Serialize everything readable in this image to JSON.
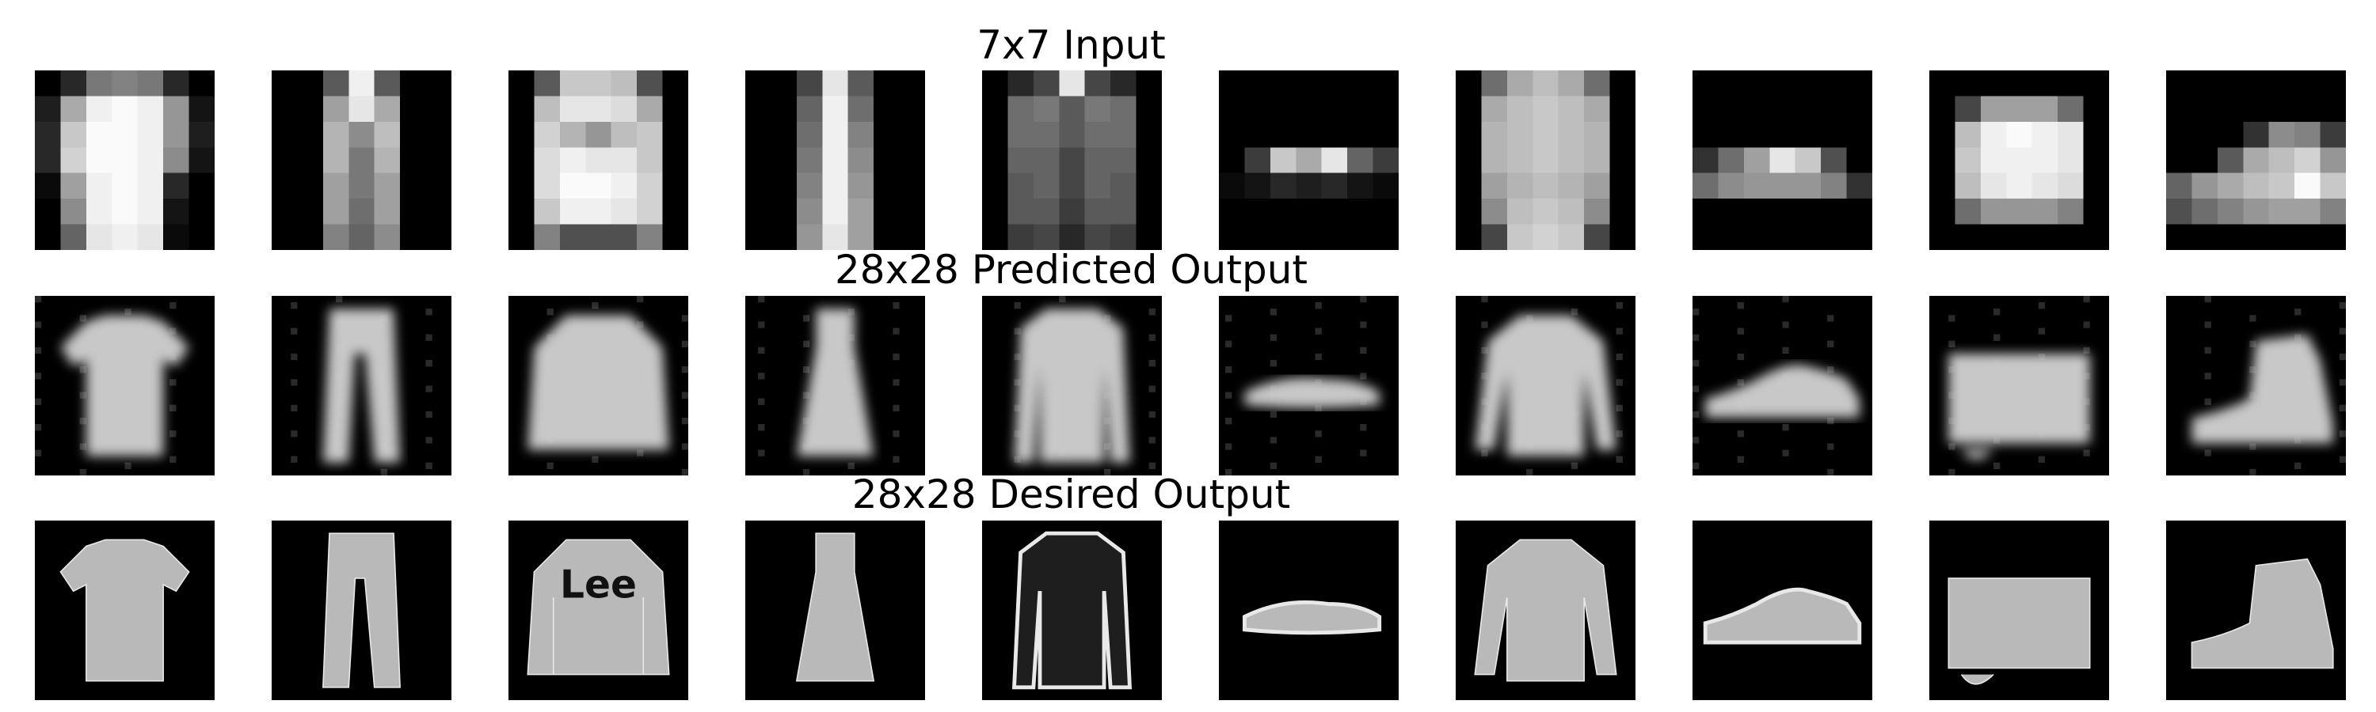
{
  "figure": {
    "rows": [
      {
        "title": "7x7 Input",
        "kind": "input"
      },
      {
        "title": "28x28 Predicted Output",
        "kind": "predicted"
      },
      {
        "title": "28x28 Desired Output",
        "kind": "desired"
      }
    ],
    "items": [
      {
        "glyph": "tshirt-icon"
      },
      {
        "glyph": "trouser-icon"
      },
      {
        "glyph": "pullover-icon"
      },
      {
        "glyph": "dress-icon"
      },
      {
        "glyph": "coat-icon"
      },
      {
        "glyph": "sandal-icon"
      },
      {
        "glyph": "shirt-icon"
      },
      {
        "glyph": "sneaker-icon"
      },
      {
        "glyph": "bag-icon"
      },
      {
        "glyph": "ankle-boot-icon"
      }
    ],
    "desired_lettering": {
      "pullover_print": "Lee"
    },
    "colors": {
      "background": "#ffffff",
      "tile": "#000000",
      "text": "#000000"
    }
  }
}
